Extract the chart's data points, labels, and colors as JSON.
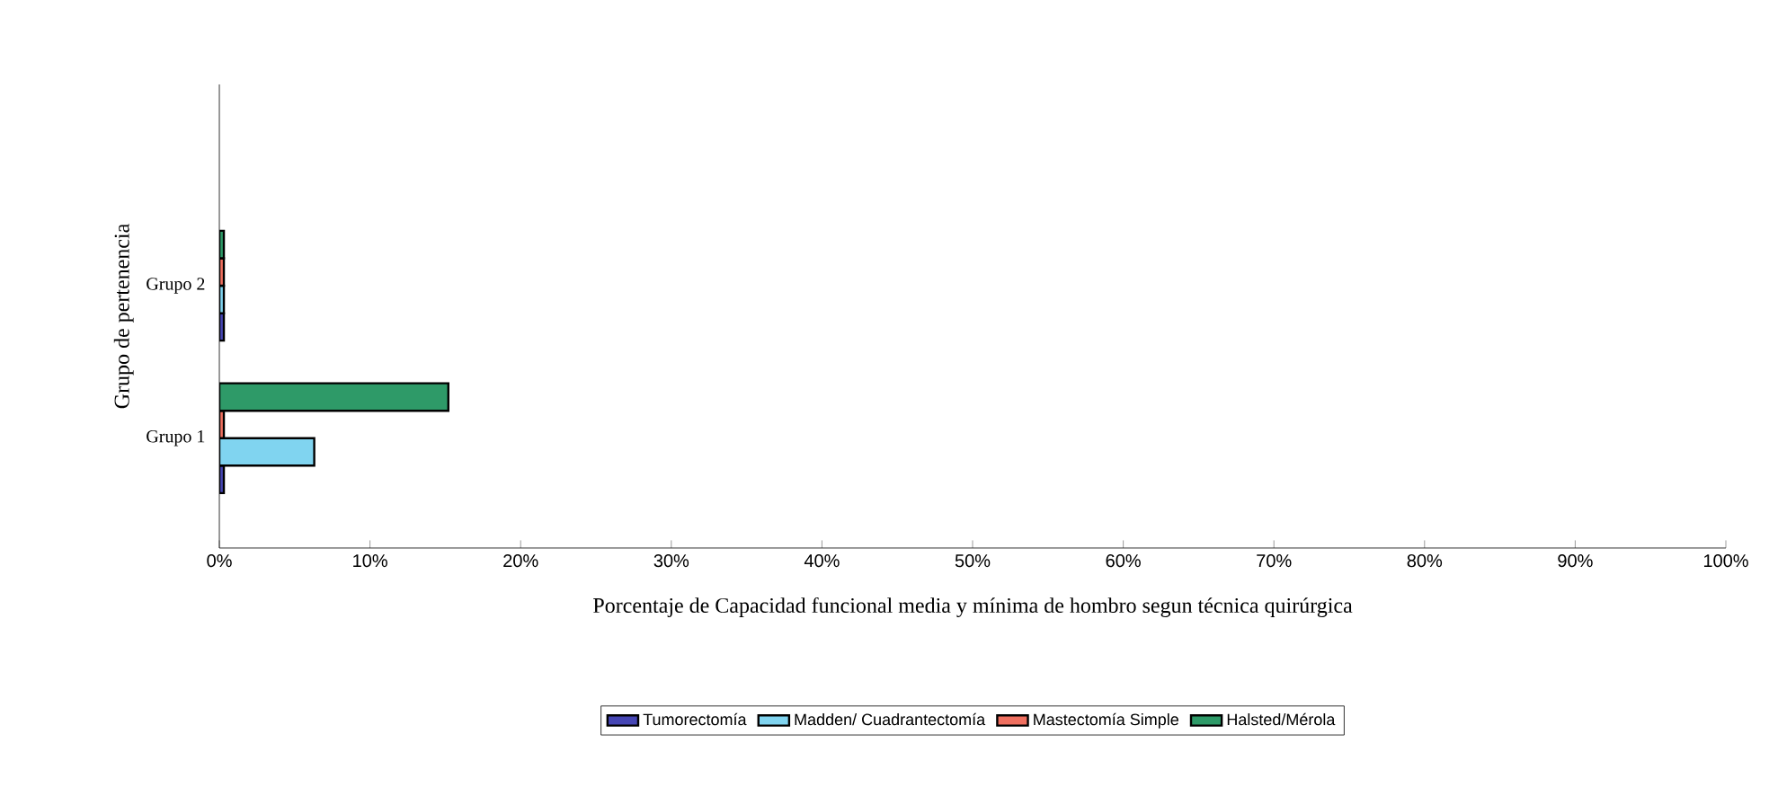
{
  "chart_data": {
    "type": "bar",
    "orientation": "horizontal",
    "xlabel": "Porcentaje de Capacidad funcional media y mínima de hombro segun técnica quirúrgica",
    "ylabel": "Grupo de pertenencia",
    "categories": [
      "Grupo 2",
      "Grupo 1"
    ],
    "series": [
      {
        "name": "Tumorectomía",
        "color": "#4646b4",
        "values": [
          0.3,
          0.3
        ]
      },
      {
        "name": "Madden/ Cuadrantectomía",
        "color": "#80d4f0",
        "values": [
          0.3,
          6.3
        ]
      },
      {
        "name": "Mastectomía Simple",
        "color": "#f07060",
        "values": [
          0.3,
          0.3
        ]
      },
      {
        "name": "Halsted/Mérola",
        "color": "#2e9a68",
        "values": [
          0.3,
          15.2
        ]
      }
    ],
    "xlim": [
      0,
      100
    ],
    "xticks": [
      {
        "value": 0,
        "label": "0%"
      },
      {
        "value": 10,
        "label": "10%"
      },
      {
        "value": 20,
        "label": "20%"
      },
      {
        "value": 30,
        "label": "30%"
      },
      {
        "value": 40,
        "label": "40%"
      },
      {
        "value": 50,
        "label": "50%"
      },
      {
        "value": 60,
        "label": "60%"
      },
      {
        "value": 70,
        "label": "70%"
      },
      {
        "value": 80,
        "label": "80%"
      },
      {
        "value": 90,
        "label": "90%"
      },
      {
        "value": 100,
        "label": "100%"
      }
    ],
    "grid": false,
    "legend": "bottom"
  }
}
